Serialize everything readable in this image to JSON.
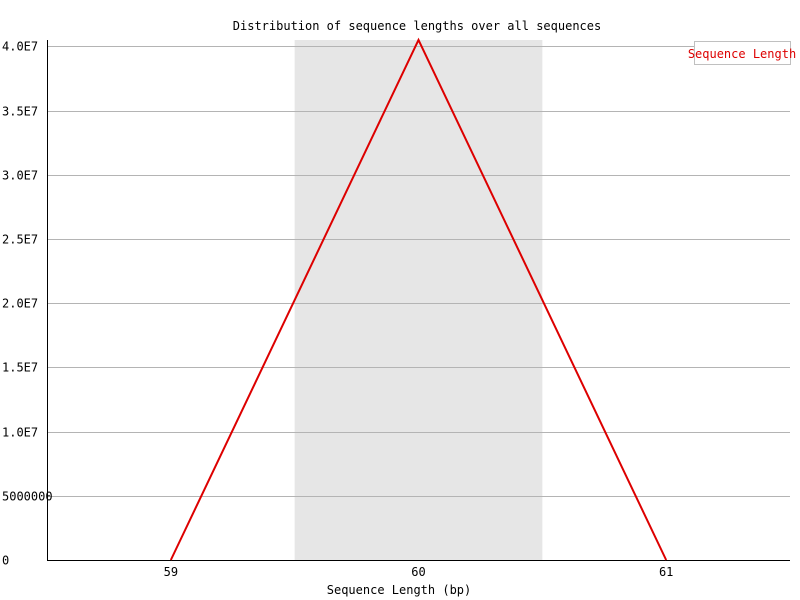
{
  "chart_data": {
    "type": "line",
    "title": "Distribution of sequence lengths over all sequences",
    "xlabel": "Sequence Length (bp)",
    "ylabel": "",
    "categories": [
      "59",
      "60",
      "61"
    ],
    "series": [
      {
        "name": "Sequence Length",
        "values": [
          0,
          40500000,
          0
        ]
      }
    ],
    "ylim": [
      0,
      40500000
    ],
    "yticks": [
      {
        "value": 0,
        "label": "0"
      },
      {
        "value": 5000000,
        "label": "5000000"
      },
      {
        "value": 10000000,
        "label": "1.0E7"
      },
      {
        "value": 15000000,
        "label": "1.5E7"
      },
      {
        "value": 20000000,
        "label": "2.0E7"
      },
      {
        "value": 25000000,
        "label": "2.5E7"
      },
      {
        "value": 30000000,
        "label": "3.0E7"
      },
      {
        "value": 35000000,
        "label": "3.5E7"
      },
      {
        "value": 40000000,
        "label": "4.0E7"
      }
    ],
    "grid": true,
    "highlight_category": "60",
    "legend_position": "top-right",
    "colors": {
      "series": "#dd0000",
      "highlight": "#e6e6e6",
      "grid": "#b4b4b4",
      "axis": "#000000",
      "legend_border": "#c0c0c0"
    }
  }
}
